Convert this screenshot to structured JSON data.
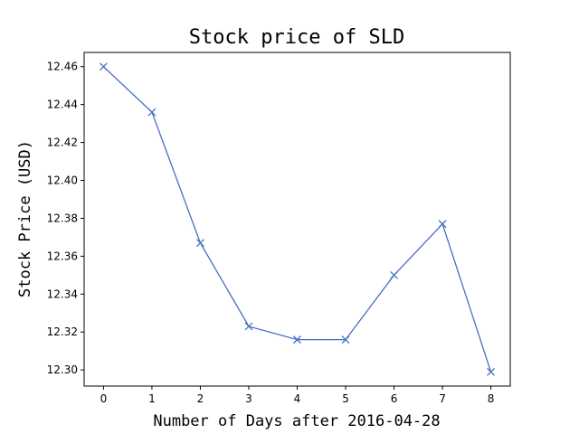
{
  "chart_data": {
    "type": "line",
    "title": "Stock price of SLD",
    "xlabel": "Number of Days after 2016-04-28",
    "ylabel": "Stock Price (USD)",
    "x": [
      0,
      1,
      2,
      3,
      4,
      5,
      6,
      7,
      8
    ],
    "series": [
      {
        "values": [
          12.46,
          12.436,
          12.367,
          12.323,
          12.316,
          12.316,
          12.35,
          12.377,
          12.299
        ],
        "color": "#4a6fc4",
        "marker": "x"
      }
    ],
    "xlim": [
      -0.4,
      8.4
    ],
    "ylim": [
      12.2915,
      12.4675
    ],
    "xticks": [
      "0",
      "1",
      "2",
      "3",
      "4",
      "5",
      "6",
      "7",
      "8"
    ],
    "yticks": [
      "12.30",
      "12.32",
      "12.34",
      "12.36",
      "12.38",
      "12.40",
      "12.42",
      "12.44",
      "12.46"
    ],
    "grid": false
  }
}
